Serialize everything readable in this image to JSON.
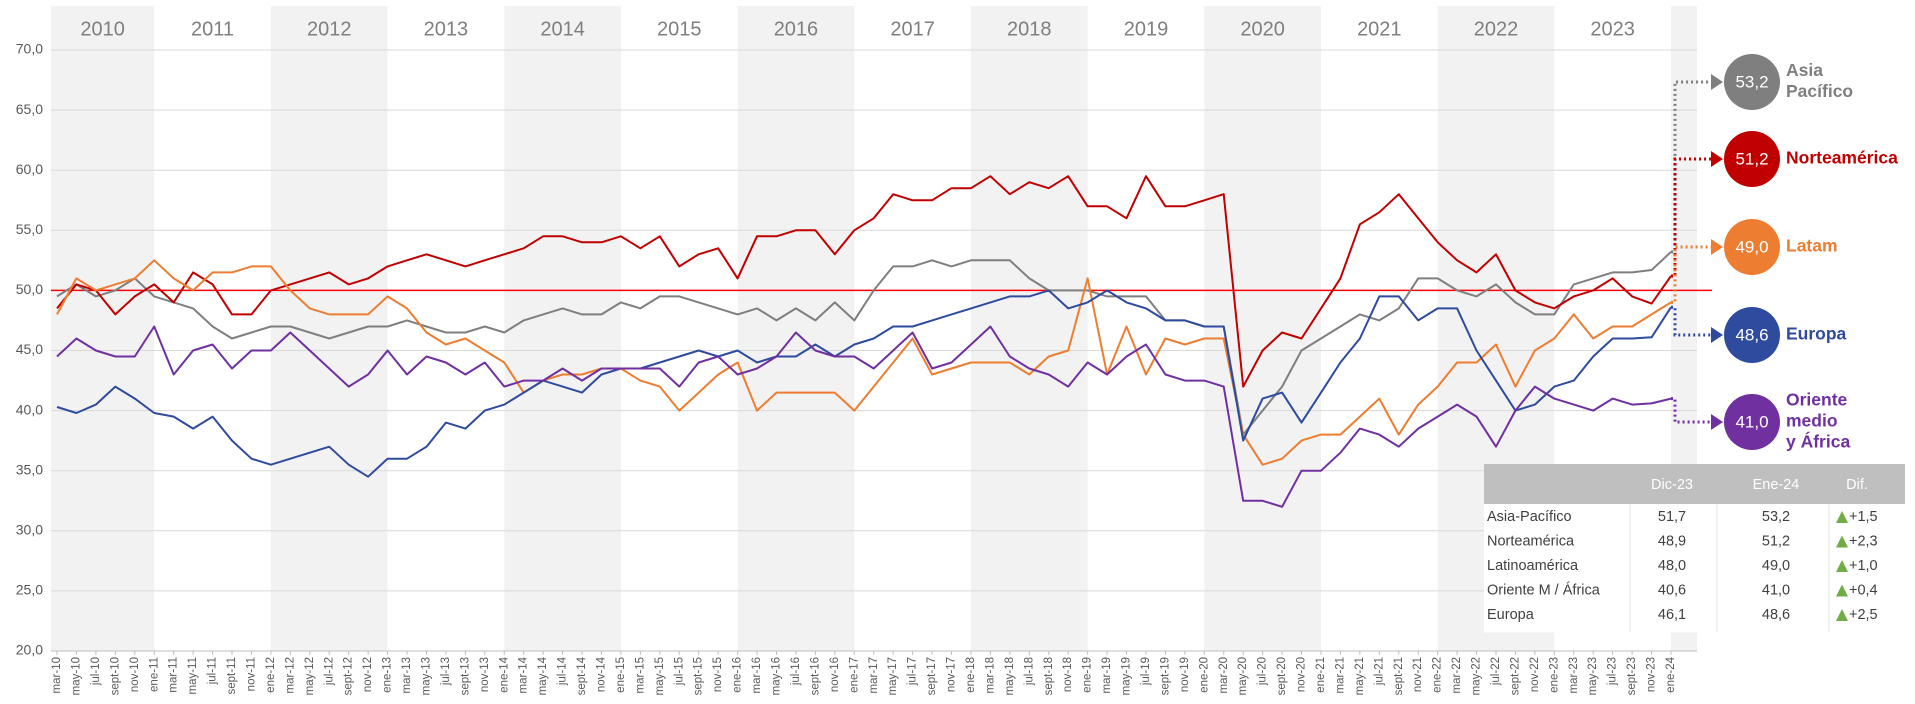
{
  "chart_data": {
    "type": "line",
    "categories": [
      "mar-10",
      "may-10",
      "jul-10",
      "sept-10",
      "nov-10",
      "ene-11",
      "mar-11",
      "may-11",
      "jul-11",
      "sept-11",
      "nov-11",
      "ene-12",
      "mar-12",
      "may-12",
      "jul-12",
      "sept-12",
      "nov-12",
      "ene-13",
      "mar-13",
      "may-13",
      "jul-13",
      "sept-13",
      "nov-13",
      "ene-14",
      "mar-14",
      "may-14",
      "jul-14",
      "sept-14",
      "nov-14",
      "ene-15",
      "mar-15",
      "may-15",
      "jul-15",
      "sept-15",
      "nov-15",
      "ene-16",
      "mar-16",
      "may-16",
      "jul-16",
      "sept-16",
      "nov-16",
      "ene-17",
      "mar-17",
      "may-17",
      "jul-17",
      "sept-17",
      "nov-17",
      "ene-18",
      "mar-18",
      "may-18",
      "jul-18",
      "sept-18",
      "nov-18",
      "ene-19",
      "mar-19",
      "may-19",
      "jul-19",
      "sept-19",
      "nov-19",
      "ene-20",
      "mar-20",
      "may-20",
      "jul-20",
      "sept-20",
      "nov-20",
      "ene-21",
      "mar-21",
      "may-21",
      "jul-21",
      "sept-21",
      "nov-21",
      "ene-22",
      "mar-22",
      "may-22",
      "jul-22",
      "sept-22",
      "nov-22",
      "ene-23",
      "mar-23",
      "may-23",
      "jul-23",
      "sept-23",
      "nov-23",
      "ene-24"
    ],
    "years": [
      "2010",
      "2011",
      "2012",
      "2013",
      "2014",
      "2015",
      "2016",
      "2017",
      "2018",
      "2019",
      "2020",
      "2021",
      "2022",
      "2023"
    ],
    "ylim": [
      20,
      70
    ],
    "yticks": [
      {
        "value": 20,
        "label": "20,0"
      },
      {
        "value": 25,
        "label": "25,0"
      },
      {
        "value": 30,
        "label": "30,0"
      },
      {
        "value": 35,
        "label": "35,0"
      },
      {
        "value": 40,
        "label": "40,0"
      },
      {
        "value": 45,
        "label": "45,0"
      },
      {
        "value": 50,
        "label": "50,0"
      },
      {
        "value": 55,
        "label": "55,0"
      },
      {
        "value": 60,
        "label": "60,0"
      },
      {
        "value": 65,
        "label": "65,0"
      },
      {
        "value": 70,
        "label": "70,0"
      }
    ],
    "grid": true,
    "reference_line": 50,
    "reference_color": "#ff0000",
    "series": [
      {
        "name_lines": [
          "Asia",
          "Pacífico"
        ],
        "color": "#7f7f7f",
        "end_label": "53,2",
        "values": [
          49.5,
          50.5,
          49.5,
          50,
          51,
          49.5,
          49,
          48.5,
          47,
          46,
          46.5,
          47,
          47,
          46.5,
          46,
          46.5,
          47,
          47,
          47.5,
          47,
          46.5,
          46.5,
          47,
          46.5,
          47.5,
          48,
          48.5,
          48,
          48,
          49,
          48.5,
          49.5,
          49.5,
          49,
          48.5,
          48,
          48.5,
          47.5,
          48.5,
          47.5,
          49,
          47.5,
          50,
          52,
          52,
          52.5,
          52,
          52.5,
          52.5,
          52.5,
          51,
          50,
          50,
          50,
          49.5,
          49.5,
          49.5,
          47.5,
          47.5,
          47,
          47,
          38,
          40,
          42,
          45,
          46,
          47,
          48,
          47.5,
          48.5,
          51,
          51,
          50,
          49.5,
          50.5,
          49,
          48,
          48,
          50.5,
          51,
          51.5,
          51.5,
          51.7,
          53.2
        ]
      },
      {
        "name_lines": [
          "Norteamérica"
        ],
        "color": "#c00000",
        "end_label": "51,2",
        "values": [
          48.5,
          50.5,
          50,
          48,
          49.5,
          50.5,
          49,
          51.5,
          50.5,
          48,
          48,
          50,
          50.5,
          51,
          51.5,
          50.5,
          51,
          52,
          52.5,
          53,
          52.5,
          52,
          52.5,
          53,
          53.5,
          54.5,
          54.5,
          54,
          54,
          54.5,
          53.5,
          54.5,
          52,
          53,
          53.5,
          51,
          54.5,
          54.5,
          55,
          55,
          53,
          55,
          56,
          58,
          57.5,
          57.5,
          58.5,
          58.5,
          59.5,
          58,
          59,
          58.5,
          59.5,
          57,
          57,
          56,
          59.5,
          57,
          57,
          57.5,
          58,
          42,
          45,
          46.5,
          46,
          48.5,
          51,
          55.5,
          56.5,
          58,
          56,
          54,
          52.5,
          51.5,
          53,
          50,
          49,
          48.5,
          49.5,
          50,
          51,
          49.5,
          48.9,
          51.2
        ]
      },
      {
        "name_lines": [
          "Latam"
        ],
        "color": "#ed7d31",
        "end_label": "49,0",
        "values": [
          48,
          51,
          50,
          50.5,
          51,
          52.5,
          51,
          50,
          51.5,
          51.5,
          52,
          52,
          50,
          48.5,
          48,
          48,
          48,
          49.5,
          48.5,
          46.5,
          45.5,
          46,
          45,
          44,
          41.5,
          42.5,
          43,
          43,
          43.5,
          43.5,
          42.5,
          42,
          40,
          41.5,
          43,
          44,
          40,
          41.5,
          41.5,
          41.5,
          41.5,
          40,
          42,
          44,
          46,
          43,
          43.5,
          44,
          44,
          44,
          43,
          44.5,
          45,
          51,
          43,
          47,
          43,
          46,
          45.5,
          46,
          46,
          38,
          35.5,
          36,
          37.5,
          38,
          38,
          39.5,
          41,
          38,
          40.5,
          42,
          44,
          44,
          45.5,
          42,
          45,
          46,
          48,
          46,
          47,
          47,
          48.0,
          49.0
        ]
      },
      {
        "name_lines": [
          "Europa"
        ],
        "color": "#2f4b9e",
        "end_label": "48,6",
        "values": [
          40.3,
          39.8,
          40.5,
          42,
          41,
          39.8,
          39.5,
          38.5,
          39.5,
          37.5,
          36,
          35.5,
          36,
          36.5,
          37,
          35.5,
          34.5,
          36,
          36,
          37,
          39,
          38.5,
          40,
          40.5,
          41.5,
          42.5,
          42,
          41.5,
          43,
          43.5,
          43.5,
          44,
          44.5,
          45,
          44.5,
          45,
          44,
          44.5,
          44.5,
          45.5,
          44.5,
          45.5,
          46,
          47,
          47,
          47.5,
          48,
          48.5,
          49,
          49.5,
          49.5,
          50,
          48.5,
          49,
          50,
          49,
          48.5,
          47.5,
          47.5,
          47,
          47,
          37.5,
          41,
          41.5,
          39,
          41.5,
          44,
          46,
          49.5,
          49.5,
          47.5,
          48.5,
          48.5,
          45,
          42.5,
          40,
          40.5,
          42,
          42.5,
          44.5,
          46,
          46,
          46.1,
          48.6
        ]
      },
      {
        "name_lines": [
          "Oriente",
          "medio",
          "y África"
        ],
        "color": "#7030a0",
        "end_label": "41,0",
        "values": [
          44.5,
          46,
          45,
          44.5,
          44.5,
          47,
          43,
          45,
          45.5,
          43.5,
          45,
          45,
          46.5,
          45,
          43.5,
          42,
          43,
          45,
          43,
          44.5,
          44,
          43,
          44,
          42,
          42.5,
          42.5,
          43.5,
          42.5,
          43.5,
          43.5,
          43.5,
          43.5,
          42,
          44,
          44.5,
          43,
          43.5,
          44.5,
          46.5,
          45,
          44.5,
          44.5,
          43.5,
          45,
          46.5,
          43.5,
          44,
          45.5,
          47,
          44.5,
          43.5,
          43,
          42,
          44,
          43,
          44.5,
          45.5,
          43,
          42.5,
          42.5,
          42,
          32.5,
          32.5,
          32,
          35,
          35,
          36.5,
          38.5,
          38,
          37,
          38.5,
          39.5,
          40.5,
          39.5,
          37,
          40,
          42,
          41,
          40.5,
          40,
          41,
          40.5,
          40.6,
          41.0
        ]
      }
    ]
  },
  "table": {
    "columns": [
      "Dic-23",
      "Ene-24",
      "Dif."
    ],
    "rows": [
      [
        "Asia-Pacífico",
        "51,7",
        "53,2",
        "+1,5"
      ],
      [
        "Norteamérica",
        "48,9",
        "51,2",
        "+2,3"
      ],
      [
        "Latinoamérica",
        "48,0",
        "49,0",
        "+1,0"
      ],
      [
        "Oriente M / África",
        "40,6",
        "41,0",
        "+0,4"
      ],
      [
        "Europa",
        "46,1",
        "48,6",
        "+2,5"
      ]
    ]
  }
}
